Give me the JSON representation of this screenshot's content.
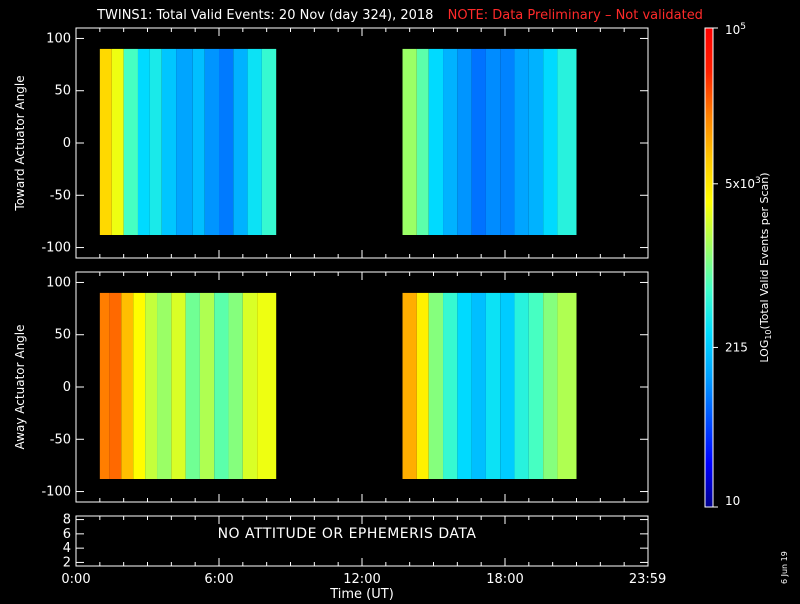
{
  "title": {
    "main": "TWINS1: Total Valid Events: 20 Nov (day 324), 2018",
    "note": "NOTE: Data Preliminary – Not validated",
    "note_color": "#ff2a2a"
  },
  "stamp": "6 Jun 19",
  "panel3_message": "NO ATTITUDE OR EPHEMERIS DATA",
  "colors": {
    "background": "#000000",
    "axes": "#ffffff",
    "colormap": [
      "#00008c",
      "#0000ff",
      "#0050ff",
      "#00a0ff",
      "#00dcff",
      "#40ffc8",
      "#a0ff60",
      "#ffff00",
      "#ffc800",
      "#ff8000",
      "#ff2000",
      "#ff0000"
    ]
  },
  "chart_data": [
    {
      "type": "heatmap",
      "ylabel": "Toward Actuator Angle",
      "xlim": [
        0,
        24
      ],
      "ylim": [
        -110,
        110
      ],
      "yticks": [
        -100,
        -50,
        0,
        50,
        100
      ],
      "data_angle_range": [
        -88,
        90
      ],
      "intervals": [
        {
          "start_hour": 1.0,
          "end_hour": 8.4,
          "segments": [
            {
              "t0": 1.0,
              "t1": 1.5,
              "level": 0.7
            },
            {
              "t0": 1.5,
              "t1": 2.0,
              "level": 0.62
            },
            {
              "t0": 2.0,
              "t1": 2.6,
              "level": 0.46
            },
            {
              "t0": 2.6,
              "t1": 3.1,
              "level": 0.36
            },
            {
              "t0": 3.1,
              "t1": 3.6,
              "level": 0.4
            },
            {
              "t0": 3.6,
              "t1": 4.2,
              "level": 0.33
            },
            {
              "t0": 4.2,
              "t1": 4.9,
              "level": 0.28
            },
            {
              "t0": 4.9,
              "t1": 5.4,
              "level": 0.32
            },
            {
              "t0": 5.4,
              "t1": 6.0,
              "level": 0.26
            },
            {
              "t0": 6.0,
              "t1": 6.6,
              "level": 0.23
            },
            {
              "t0": 6.6,
              "t1": 7.2,
              "level": 0.3
            },
            {
              "t0": 7.2,
              "t1": 7.8,
              "level": 0.38
            },
            {
              "t0": 7.8,
              "t1": 8.4,
              "level": 0.44
            }
          ]
        },
        {
          "start_hour": 13.7,
          "end_hour": 21.0,
          "segments": [
            {
              "t0": 13.7,
              "t1": 14.3,
              "level": 0.54
            },
            {
              "t0": 14.3,
              "t1": 14.8,
              "level": 0.48
            },
            {
              "t0": 14.8,
              "t1": 15.4,
              "level": 0.36
            },
            {
              "t0": 15.4,
              "t1": 16.0,
              "level": 0.3
            },
            {
              "t0": 16.0,
              "t1": 16.6,
              "level": 0.26
            },
            {
              "t0": 16.6,
              "t1": 17.2,
              "level": 0.22
            },
            {
              "t0": 17.2,
              "t1": 17.8,
              "level": 0.25
            },
            {
              "t0": 17.8,
              "t1": 18.4,
              "level": 0.24
            },
            {
              "t0": 18.4,
              "t1": 19.0,
              "level": 0.28
            },
            {
              "t0": 19.0,
              "t1": 19.6,
              "level": 0.3
            },
            {
              "t0": 19.6,
              "t1": 20.2,
              "level": 0.36
            },
            {
              "t0": 20.2,
              "t1": 21.0,
              "level": 0.42
            }
          ]
        }
      ]
    },
    {
      "type": "heatmap",
      "ylabel": "Away Actuator Angle",
      "xlim": [
        0,
        24
      ],
      "ylim": [
        -110,
        110
      ],
      "yticks": [
        -100,
        -50,
        0,
        50,
        100
      ],
      "data_angle_range": [
        -88,
        90
      ],
      "intervals": [
        {
          "start_hour": 1.0,
          "end_hour": 8.4,
          "segments": [
            {
              "t0": 1.0,
              "t1": 1.4,
              "level": 0.82
            },
            {
              "t0": 1.4,
              "t1": 1.9,
              "level": 0.84
            },
            {
              "t0": 1.9,
              "t1": 2.4,
              "level": 0.74
            },
            {
              "t0": 2.4,
              "t1": 2.9,
              "level": 0.64
            },
            {
              "t0": 2.9,
              "t1": 3.4,
              "level": 0.58
            },
            {
              "t0": 3.4,
              "t1": 4.0,
              "level": 0.54
            },
            {
              "t0": 4.0,
              "t1": 4.6,
              "level": 0.6
            },
            {
              "t0": 4.6,
              "t1": 5.2,
              "level": 0.5
            },
            {
              "t0": 5.2,
              "t1": 5.8,
              "level": 0.56
            },
            {
              "t0": 5.8,
              "t1": 6.4,
              "level": 0.48
            },
            {
              "t0": 6.4,
              "t1": 7.0,
              "level": 0.52
            },
            {
              "t0": 7.0,
              "t1": 7.6,
              "level": 0.6
            },
            {
              "t0": 7.6,
              "t1": 8.4,
              "level": 0.62
            }
          ]
        },
        {
          "start_hour": 13.7,
          "end_hour": 21.0,
          "segments": [
            {
              "t0": 13.7,
              "t1": 14.3,
              "level": 0.76
            },
            {
              "t0": 14.3,
              "t1": 14.8,
              "level": 0.66
            },
            {
              "t0": 14.8,
              "t1": 15.4,
              "level": 0.52
            },
            {
              "t0": 15.4,
              "t1": 16.0,
              "level": 0.44
            },
            {
              "t0": 16.0,
              "t1": 16.6,
              "level": 0.36
            },
            {
              "t0": 16.6,
              "t1": 17.2,
              "level": 0.32
            },
            {
              "t0": 17.2,
              "t1": 17.8,
              "level": 0.38
            },
            {
              "t0": 17.8,
              "t1": 18.4,
              "level": 0.34
            },
            {
              "t0": 18.4,
              "t1": 19.0,
              "level": 0.42
            },
            {
              "t0": 19.0,
              "t1": 19.6,
              "level": 0.46
            },
            {
              "t0": 19.6,
              "t1": 20.2,
              "level": 0.52
            },
            {
              "t0": 20.2,
              "t1": 21.0,
              "level": 0.56
            }
          ]
        }
      ]
    },
    {
      "type": "line",
      "xlim": [
        0,
        24
      ],
      "ylim": [
        1.5,
        8.5
      ],
      "yticks": [
        2,
        4,
        6,
        8
      ],
      "xticks": [
        0,
        6,
        12,
        18,
        23.983
      ],
      "xtick_labels": [
        "0:00",
        "6:00",
        "12:00",
        "18:00",
        "23:59"
      ],
      "xlabel": "Time (UT)",
      "series": []
    }
  ],
  "colorbar": {
    "label": "LOG10(Total Valid Events per Scan)",
    "label_base": "LOG",
    "label_sub": "10",
    "label_rest": "(Total Valid Events per Scan)",
    "scale": "log",
    "range": [
      10,
      100000
    ],
    "ticks": [
      {
        "value": 10,
        "label": "10"
      },
      {
        "value": 215,
        "label": "215"
      },
      {
        "value": 5000,
        "label": "5x10",
        "exp": "3"
      },
      {
        "value": 100000,
        "label": "10",
        "exp": "5"
      }
    ]
  }
}
